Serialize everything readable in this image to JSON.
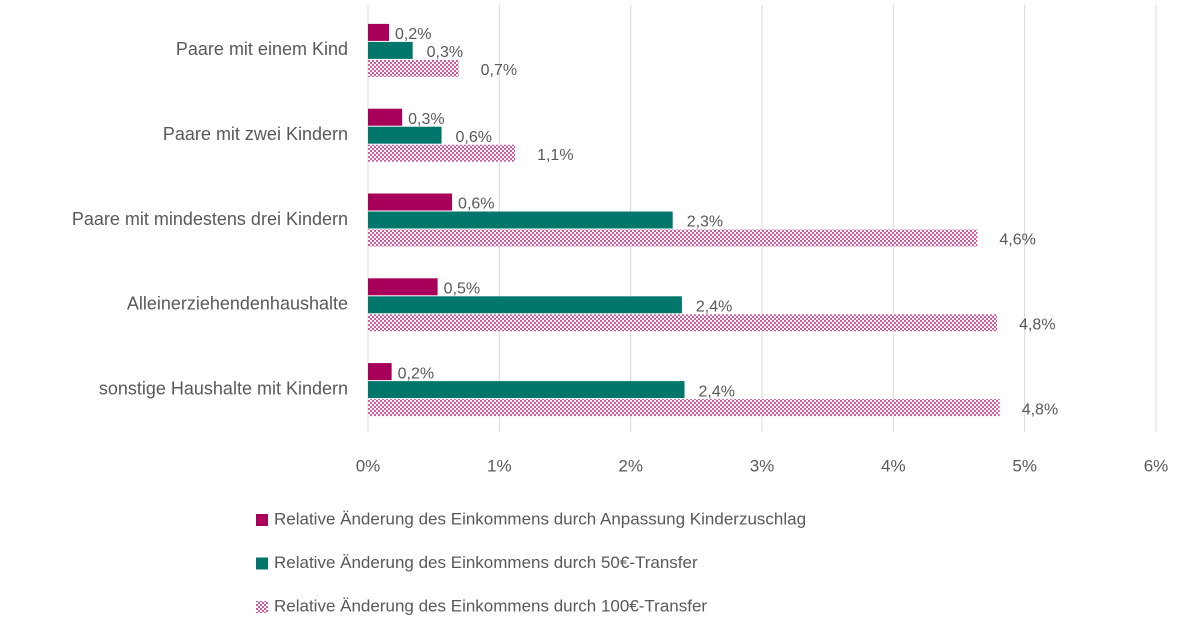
{
  "chart_data": {
    "type": "barh",
    "categories": [
      "Paare mit einem Kind",
      "Paare mit zwei Kindern",
      "Paare mit mindestens drei Kindern",
      "Alleinerziehendenhaushalte",
      "sonstige Haushalte mit Kindern"
    ],
    "series": [
      {
        "name": "Relative Änderung des Einkommens durch Anpassung Kinderzuschlag",
        "color": "#a8005a",
        "values": [
          0.16,
          0.26,
          0.64,
          0.53,
          0.18
        ],
        "value_labels": [
          "0,2%",
          "0,3%",
          "0,6%",
          "0,5%",
          "0,2%"
        ]
      },
      {
        "name": "Relative Änderung des Einkommens durch 50€-Transfer",
        "color": "#00776a",
        "values": [
          0.34,
          0.56,
          2.32,
          2.39,
          2.41
        ],
        "value_labels": [
          "0,3%",
          "0,6%",
          "2,3%",
          "2,4%",
          "2,4%"
        ]
      },
      {
        "name": "Relative Änderung des Einkommens durch 100€-Transfer",
        "color": "#d8589f",
        "pattern": "checkered",
        "values": [
          0.69,
          1.12,
          4.64,
          4.79,
          4.81
        ],
        "value_labels": [
          "0,7%",
          "1,1%",
          "4,6%",
          "4,8%",
          "4,8%"
        ]
      }
    ],
    "xlim": [
      0,
      6
    ],
    "xticks": [
      {
        "value": 0,
        "label": "0%"
      },
      {
        "value": 1,
        "label": "1%"
      },
      {
        "value": 2,
        "label": "2%"
      },
      {
        "value": 3,
        "label": "3%"
      },
      {
        "value": 4,
        "label": "4%"
      },
      {
        "value": 5,
        "label": "5%"
      },
      {
        "value": 6,
        "label": "6%"
      }
    ],
    "grid": true,
    "legend": "bottom"
  }
}
